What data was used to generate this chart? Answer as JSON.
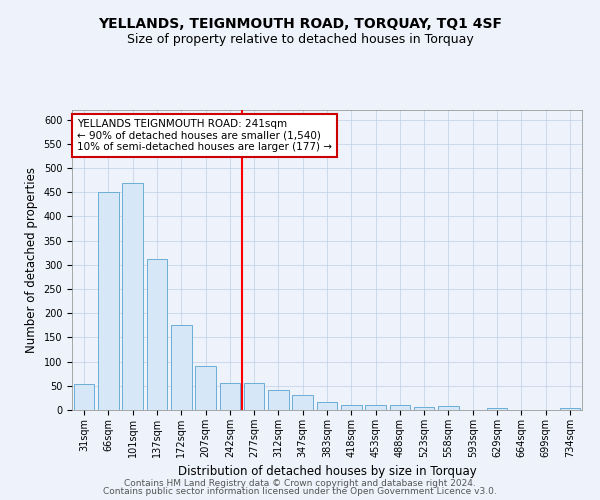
{
  "title": "YELLANDS, TEIGNMOUTH ROAD, TORQUAY, TQ1 4SF",
  "subtitle": "Size of property relative to detached houses in Torquay",
  "xlabel": "Distribution of detached houses by size in Torquay",
  "ylabel": "Number of detached properties",
  "categories": [
    "31sqm",
    "66sqm",
    "101sqm",
    "137sqm",
    "172sqm",
    "207sqm",
    "242sqm",
    "277sqm",
    "312sqm",
    "347sqm",
    "383sqm",
    "418sqm",
    "453sqm",
    "488sqm",
    "523sqm",
    "558sqm",
    "593sqm",
    "629sqm",
    "664sqm",
    "699sqm",
    "734sqm"
  ],
  "values": [
    53,
    450,
    470,
    313,
    175,
    90,
    55,
    55,
    41,
    31,
    16,
    10,
    10,
    10,
    6,
    9,
    1,
    4,
    0,
    1,
    5
  ],
  "bar_color": "#d6e8f7",
  "bar_edge_color": "#6aaed6",
  "red_line_x": 6.5,
  "annotation_text": "YELLANDS TEIGNMOUTH ROAD: 241sqm\n← 90% of detached houses are smaller (1,540)\n10% of semi-detached houses are larger (177) →",
  "annotation_box_color": "#ffffff",
  "annotation_box_edge_color": "#cc0000",
  "ylim": [
    0,
    620
  ],
  "yticks": [
    0,
    50,
    100,
    150,
    200,
    250,
    300,
    350,
    400,
    450,
    500,
    550,
    600
  ],
  "footer1": "Contains HM Land Registry data © Crown copyright and database right 2024.",
  "footer2": "Contains public sector information licensed under the Open Government Licence v3.0.",
  "background_color": "#eef2fa",
  "plot_bg_color": "#eef2fa",
  "grid_color": "#c0cfe8",
  "title_fontsize": 10,
  "subtitle_fontsize": 9,
  "tick_fontsize": 7,
  "label_fontsize": 8.5,
  "footer_fontsize": 6.5,
  "annotation_fontsize": 7.5
}
